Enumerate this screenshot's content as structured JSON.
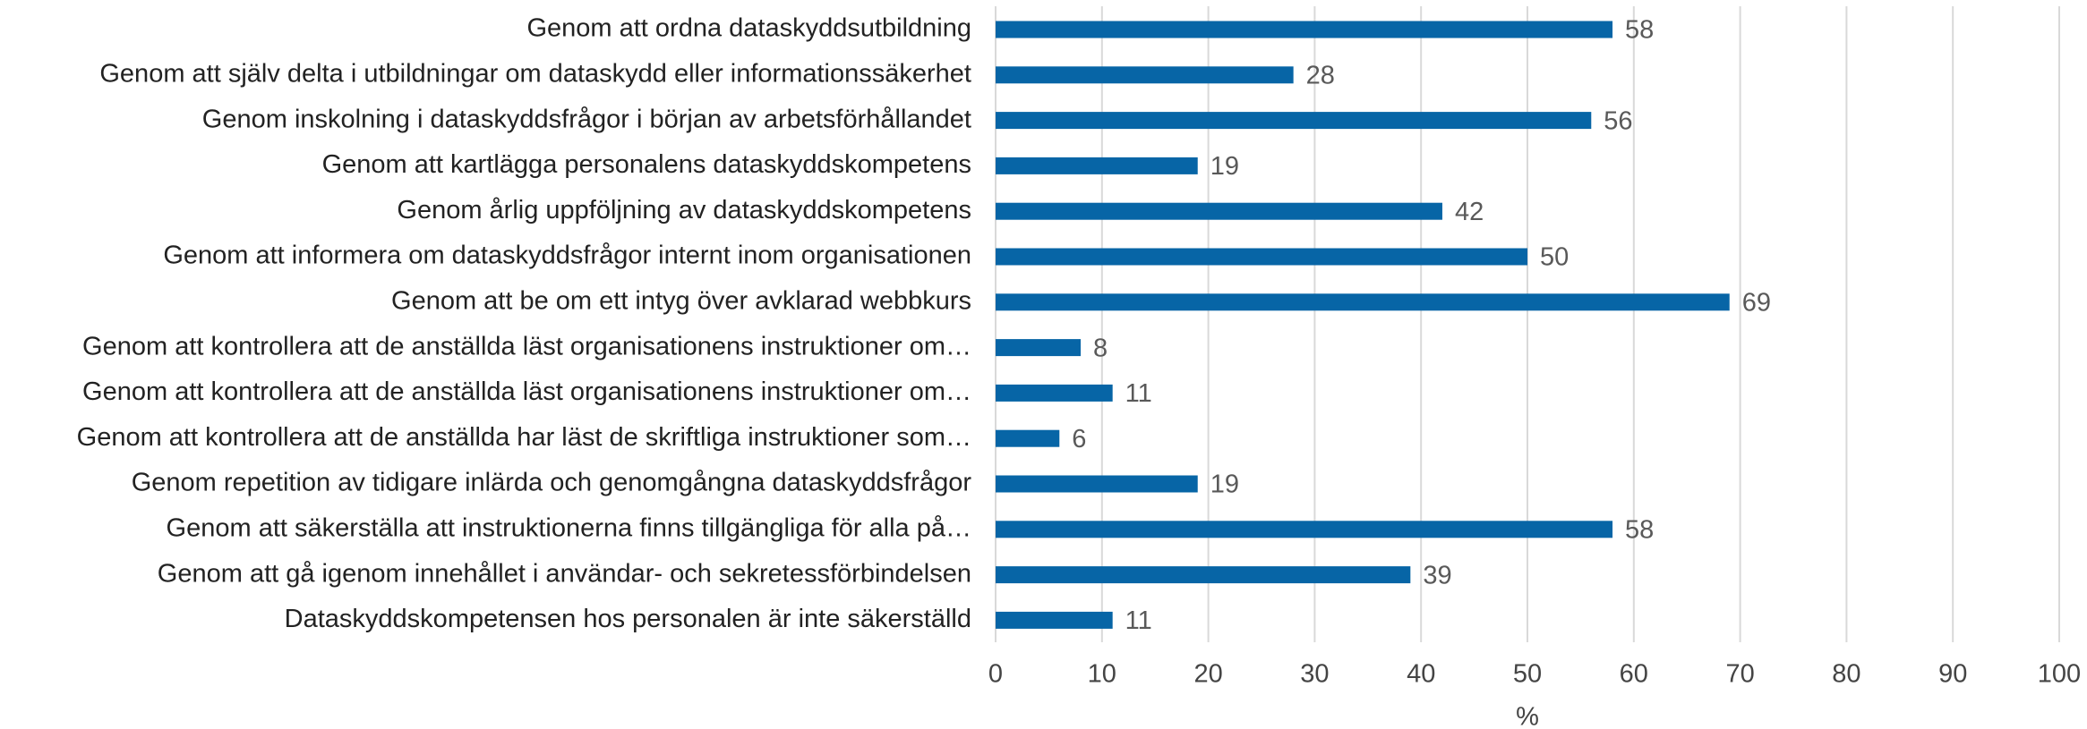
{
  "chart_data": {
    "type": "bar",
    "orientation": "horizontal",
    "categories": [
      "Genom att ordna dataskyddsutbildning",
      "Genom att själv delta i utbildningar om dataskydd eller informationssäkerhet",
      "Genom inskolning i dataskyddsfrågor i början av arbetsförhållandet",
      "Genom att kartlägga personalens dataskyddskompetens",
      "Genom årlig uppföljning av dataskyddskompetens",
      "Genom att informera om dataskyddsfrågor internt inom organisationen",
      "Genom att be om ett intyg över avklarad webbkurs",
      "Genom att kontrollera att de anställda läst organisationens instruktioner om…",
      "Genom att kontrollera att de anställda läst organisationens instruktioner om…",
      "Genom att kontrollera att de anställda har läst de skriftliga instruktioner som…",
      "Genom repetition av tidigare inlärda och genomgångna dataskyddsfrågor",
      "Genom att säkerställa att instruktionerna finns tillgängliga för alla på…",
      "Genom att gå igenom innehållet i användar- och sekretessförbindelsen",
      "Dataskyddskompetensen hos personalen är inte säkerställd"
    ],
    "values": [
      58,
      28,
      56,
      19,
      42,
      50,
      69,
      8,
      11,
      6,
      19,
      58,
      39,
      11
    ],
    "color": "#0765a6",
    "xlabel": "%",
    "xlim": [
      0,
      100
    ],
    "xticks": [
      0,
      10,
      20,
      30,
      40,
      50,
      60,
      70,
      80,
      90,
      100
    ],
    "grid": true
  }
}
